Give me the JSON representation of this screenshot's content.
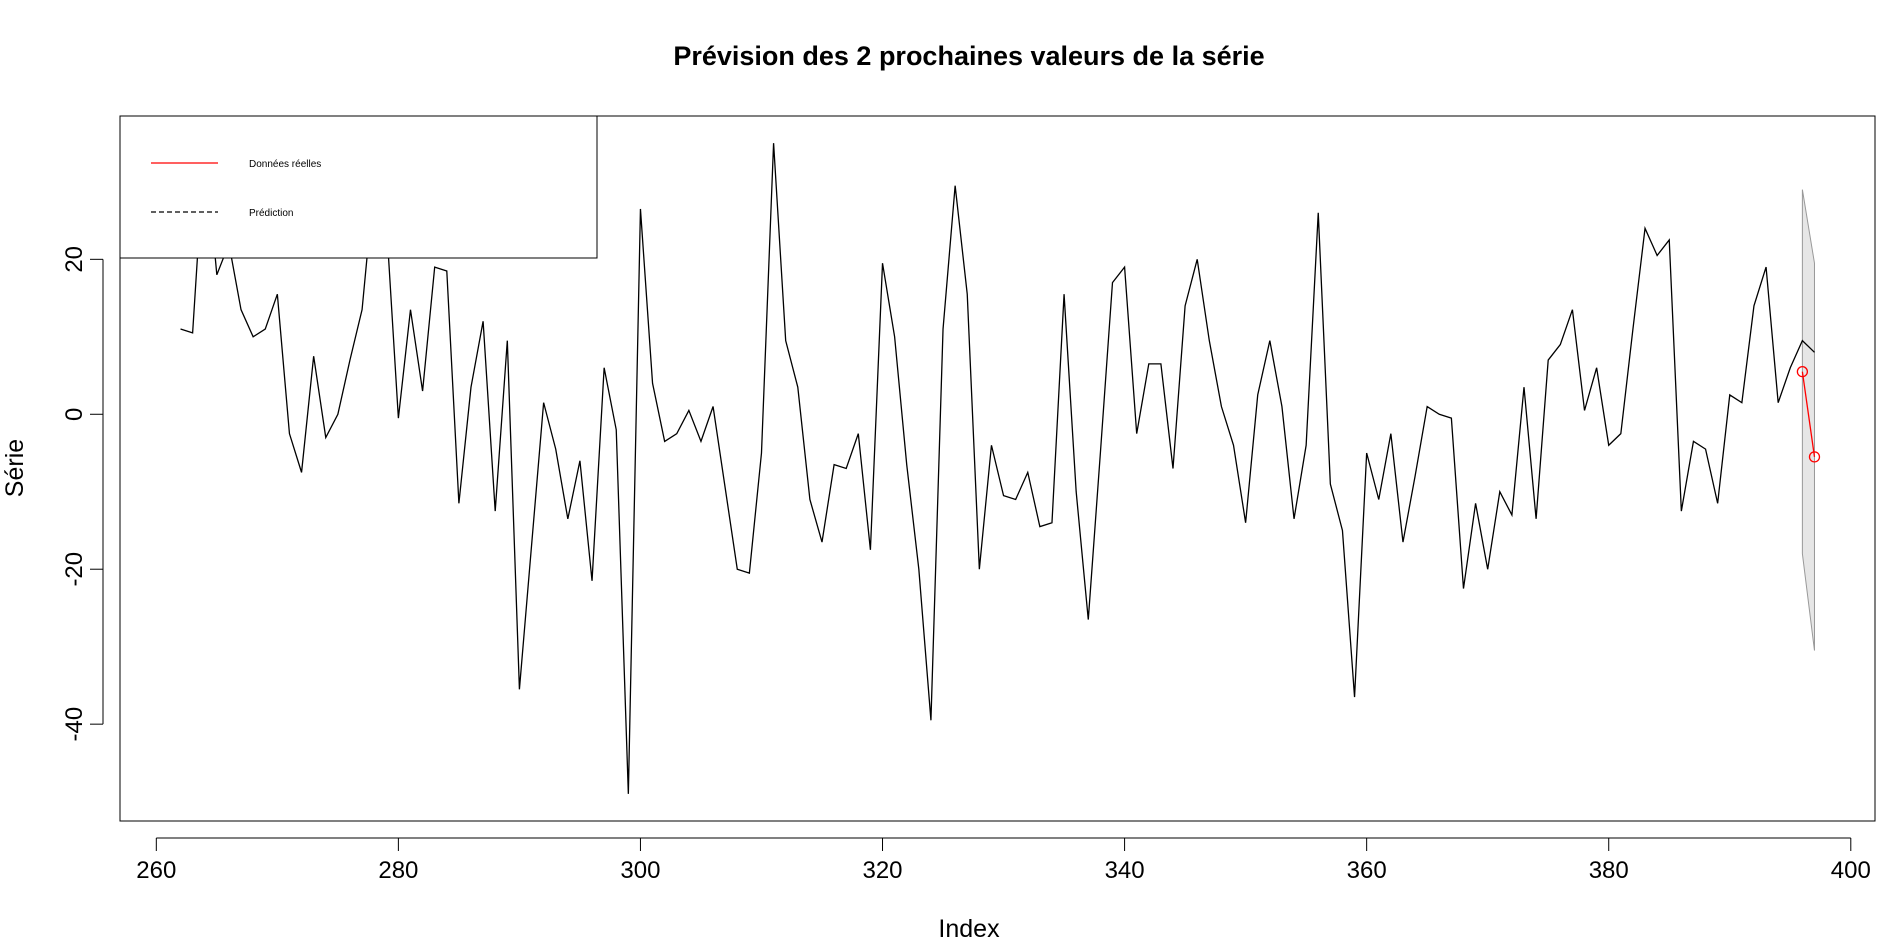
{
  "chart_data": {
    "type": "line",
    "title": "Prévision des 2 prochaines valeurs de la série",
    "xlabel": "Index",
    "ylabel": "Série",
    "xlim": [
      257,
      402
    ],
    "ylim": [
      -52.5,
      38.5
    ],
    "x_ticks": [
      260,
      280,
      300,
      320,
      340,
      360,
      380,
      400
    ],
    "y_ticks": [
      -40,
      -20,
      0,
      20
    ],
    "legend": {
      "position": "top-left",
      "entries": [
        {
          "label": "Données réelles",
          "color": "#ff0000",
          "dash": "solid"
        },
        {
          "label": "Prédiction",
          "color": "#000000",
          "dash": "dashed"
        }
      ]
    },
    "series": [
      {
        "name": "Série",
        "color": "#000000",
        "x_start": 262,
        "values": [
          11,
          10.5,
          35,
          18,
          22,
          13.5,
          10,
          11,
          15.5,
          -2.5,
          -7.5,
          7.5,
          -3,
          0,
          7,
          13.5,
          30,
          25,
          -0.5,
          13.5,
          3,
          19,
          18.5,
          -11.5,
          3.5,
          12,
          -12.5,
          9.5,
          -35.5,
          -17,
          1.5,
          -4.5,
          -13.5,
          -6,
          -21.5,
          6,
          -2,
          -49,
          26.5,
          4,
          -3.5,
          -2.5,
          0.5,
          -3.5,
          1,
          -9.5,
          -20,
          -20.5,
          -5,
          35,
          9.5,
          3.5,
          -11,
          -16.5,
          -6.5,
          -7,
          -2.5,
          -17.5,
          19.5,
          10,
          -6.5,
          -20,
          -39.5,
          11,
          29.5,
          15.5,
          -20,
          -4,
          -10.5,
          -11,
          -7.5,
          -14.5,
          -14,
          15.5,
          -10,
          -26.5,
          -5,
          17,
          19,
          -2.5,
          6.5,
          6.5,
          -7,
          14,
          20,
          9.5,
          1,
          -4,
          -14,
          2.5,
          9.5,
          1,
          -13.5,
          -4,
          26,
          -9,
          -15,
          -36.5,
          -5,
          -11,
          -2.5,
          -16.5,
          -8,
          1,
          0,
          -0.5,
          -22.5,
          -11.5,
          -20,
          -10,
          -13,
          3.5,
          -13.5,
          7,
          9,
          13.5,
          0.5,
          6,
          -4,
          -2.5,
          11,
          24,
          20.5,
          22.5,
          -12.5,
          -3.5,
          -4.5,
          -11.5,
          2.5,
          1.5,
          14,
          19,
          1.5,
          6,
          9.5,
          8
        ]
      },
      {
        "name": "Données réelles",
        "color": "#ff0000",
        "x": [
          396,
          397
        ],
        "values": [
          5.5,
          -5.5
        ]
      }
    ],
    "prediction_interval": {
      "color": "#e6e6e6",
      "x": [
        396,
        397
      ],
      "upper": [
        29,
        19.5
      ],
      "lower": [
        -18,
        -30.5
      ]
    }
  }
}
